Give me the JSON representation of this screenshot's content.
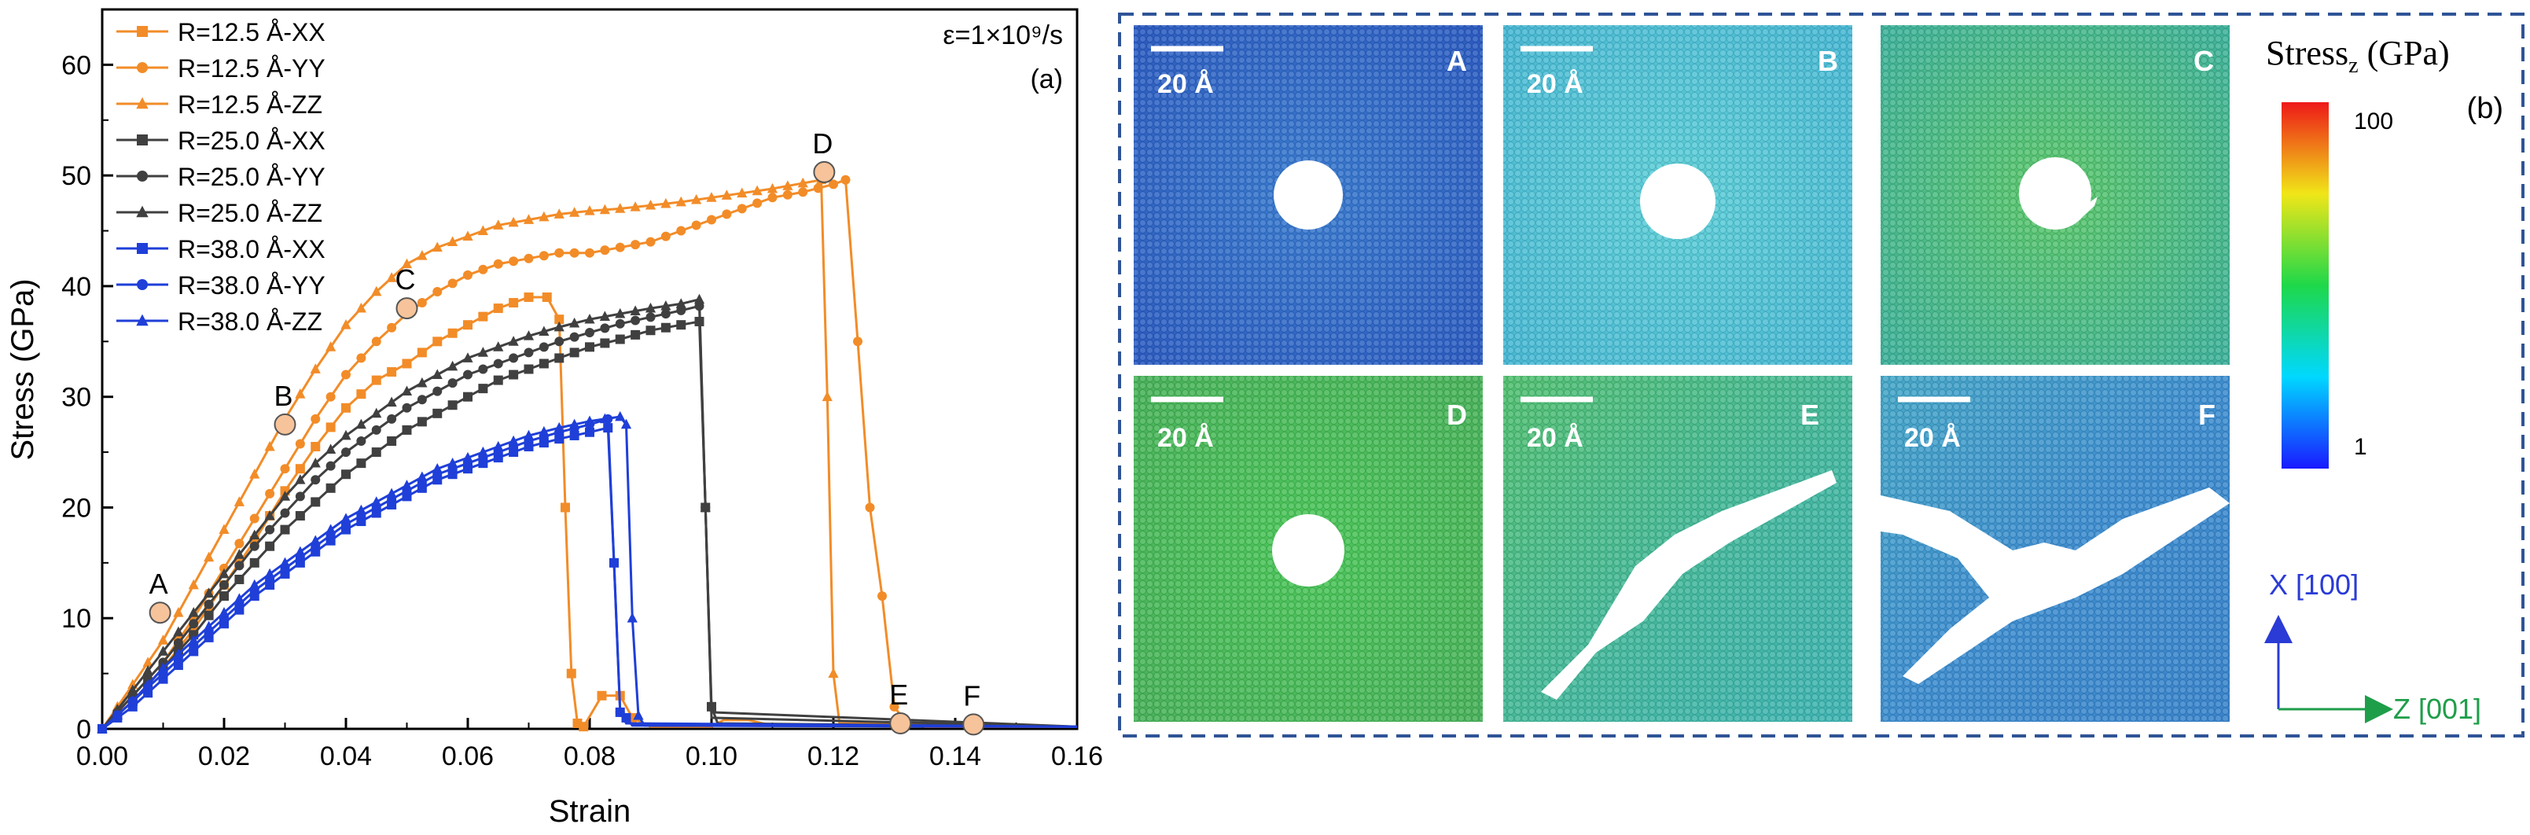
{
  "chart_data": {
    "type": "line",
    "panel_label": "(a)",
    "rate_label": "ε=1×10⁹/s",
    "xlabel": "Strain",
    "ylabel": "Stress (GPa)",
    "xlim": [
      0.0,
      0.16
    ],
    "ylim": [
      0,
      65
    ],
    "x_ticks": [
      "0.00",
      "0.02",
      "0.04",
      "0.06",
      "0.08",
      "0.10",
      "0.12",
      "0.14",
      "0.16"
    ],
    "y_ticks": [
      "0",
      "10",
      "20",
      "30",
      "40",
      "50",
      "60"
    ],
    "legend_position": "top-left",
    "series": [
      {
        "name": "R=12.5 Å-XX",
        "color": "#f28c28",
        "marker": "square",
        "points": [
          [
            0,
            0
          ],
          [
            0.005,
            2.5
          ],
          [
            0.01,
            5.5
          ],
          [
            0.015,
            9
          ],
          [
            0.02,
            13
          ],
          [
            0.025,
            17
          ],
          [
            0.03,
            21.5
          ],
          [
            0.035,
            25.5
          ],
          [
            0.04,
            29
          ],
          [
            0.045,
            31.5
          ],
          [
            0.05,
            33
          ],
          [
            0.055,
            35
          ],
          [
            0.06,
            36.5
          ],
          [
            0.065,
            38
          ],
          [
            0.07,
            39
          ],
          [
            0.073,
            39
          ],
          [
            0.075,
            37
          ],
          [
            0.076,
            20
          ],
          [
            0.077,
            5
          ],
          [
            0.078,
            0.5
          ],
          [
            0.079,
            0.2
          ],
          [
            0.082,
            3
          ],
          [
            0.085,
            3
          ],
          [
            0.087,
            1
          ],
          [
            0.09,
            0.2
          ],
          [
            0.1,
            0.2
          ],
          [
            0.102,
            0.8
          ],
          [
            0.106,
            0.8
          ],
          [
            0.11,
            0.3
          ],
          [
            0.16,
            0.2
          ]
        ]
      },
      {
        "name": "R=12.5 Å-YY",
        "color": "#f28c28",
        "marker": "circle",
        "points": [
          [
            0,
            0
          ],
          [
            0.005,
            3
          ],
          [
            0.01,
            6
          ],
          [
            0.015,
            10
          ],
          [
            0.02,
            14.5
          ],
          [
            0.025,
            19
          ],
          [
            0.03,
            23.5
          ],
          [
            0.035,
            28
          ],
          [
            0.04,
            32
          ],
          [
            0.045,
            35
          ],
          [
            0.05,
            37.5
          ],
          [
            0.055,
            39.5
          ],
          [
            0.06,
            41
          ],
          [
            0.065,
            42
          ],
          [
            0.07,
            42.5
          ],
          [
            0.075,
            43
          ],
          [
            0.08,
            43
          ],
          [
            0.085,
            43.5
          ],
          [
            0.09,
            44
          ],
          [
            0.095,
            45
          ],
          [
            0.1,
            46
          ],
          [
            0.105,
            47
          ],
          [
            0.11,
            48
          ],
          [
            0.115,
            48.5
          ],
          [
            0.12,
            49.2
          ],
          [
            0.122,
            49.6
          ],
          [
            0.124,
            35
          ],
          [
            0.126,
            20
          ],
          [
            0.128,
            12
          ],
          [
            0.13,
            2
          ],
          [
            0.132,
            0.5
          ],
          [
            0.135,
            0.2
          ],
          [
            0.16,
            0.2
          ]
        ]
      },
      {
        "name": "R=12.5 Å-ZZ",
        "color": "#f28c28",
        "marker": "triangle",
        "points": [
          [
            0,
            0
          ],
          [
            0.005,
            4
          ],
          [
            0.01,
            8
          ],
          [
            0.015,
            13
          ],
          [
            0.02,
            18
          ],
          [
            0.025,
            23
          ],
          [
            0.03,
            28
          ],
          [
            0.035,
            32.5
          ],
          [
            0.04,
            36.5
          ],
          [
            0.045,
            39.5
          ],
          [
            0.05,
            42
          ],
          [
            0.055,
            43.5
          ],
          [
            0.06,
            44.5
          ],
          [
            0.065,
            45.5
          ],
          [
            0.07,
            46
          ],
          [
            0.075,
            46.5
          ],
          [
            0.08,
            46.8
          ],
          [
            0.085,
            47
          ],
          [
            0.09,
            47.3
          ],
          [
            0.095,
            47.6
          ],
          [
            0.1,
            48
          ],
          [
            0.105,
            48.4
          ],
          [
            0.11,
            48.8
          ],
          [
            0.115,
            49.3
          ],
          [
            0.118,
            49.6
          ],
          [
            0.119,
            30
          ],
          [
            0.12,
            5
          ],
          [
            0.121,
            0.5
          ],
          [
            0.16,
            0.2
          ]
        ]
      },
      {
        "name": "R=25.0 Å-XX",
        "color": "#404040",
        "marker": "square",
        "points": [
          [
            0,
            0
          ],
          [
            0.005,
            2.5
          ],
          [
            0.01,
            5.5
          ],
          [
            0.015,
            8.5
          ],
          [
            0.02,
            12
          ],
          [
            0.025,
            15
          ],
          [
            0.03,
            18
          ],
          [
            0.035,
            20.5
          ],
          [
            0.04,
            23
          ],
          [
            0.045,
            25
          ],
          [
            0.05,
            27
          ],
          [
            0.055,
            28.5
          ],
          [
            0.06,
            30
          ],
          [
            0.065,
            31.5
          ],
          [
            0.07,
            32.5
          ],
          [
            0.075,
            33.5
          ],
          [
            0.08,
            34.5
          ],
          [
            0.085,
            35.2
          ],
          [
            0.09,
            36
          ],
          [
            0.095,
            36.5
          ],
          [
            0.098,
            36.8
          ],
          [
            0.099,
            20
          ],
          [
            0.1,
            2
          ],
          [
            0.101,
            0.5
          ],
          [
            0.16,
            0.2
          ]
        ]
      },
      {
        "name": "R=25.0 Å-YY",
        "color": "#404040",
        "marker": "circle",
        "points": [
          [
            0,
            0
          ],
          [
            0.005,
            3
          ],
          [
            0.01,
            6
          ],
          [
            0.015,
            9.5
          ],
          [
            0.02,
            13
          ],
          [
            0.025,
            16.5
          ],
          [
            0.03,
            19.5
          ],
          [
            0.035,
            22.5
          ],
          [
            0.04,
            25
          ],
          [
            0.045,
            27
          ],
          [
            0.05,
            29
          ],
          [
            0.055,
            30.5
          ],
          [
            0.06,
            32
          ],
          [
            0.065,
            33
          ],
          [
            0.07,
            34
          ],
          [
            0.075,
            35
          ],
          [
            0.08,
            35.8
          ],
          [
            0.085,
            36.6
          ],
          [
            0.09,
            37.2
          ],
          [
            0.095,
            37.8
          ],
          [
            0.098,
            38.2
          ],
          [
            0.099,
            20
          ],
          [
            0.1,
            1.5
          ],
          [
            0.16,
            0.2
          ]
        ]
      },
      {
        "name": "R=25.0 Å-ZZ",
        "color": "#404040",
        "marker": "triangle",
        "points": [
          [
            0,
            0
          ],
          [
            0.005,
            3.5
          ],
          [
            0.01,
            7
          ],
          [
            0.015,
            10.5
          ],
          [
            0.02,
            14
          ],
          [
            0.025,
            17.5
          ],
          [
            0.03,
            21
          ],
          [
            0.035,
            24
          ],
          [
            0.04,
            26.5
          ],
          [
            0.045,
            28.5
          ],
          [
            0.05,
            30.5
          ],
          [
            0.055,
            32
          ],
          [
            0.06,
            33.5
          ],
          [
            0.065,
            34.5
          ],
          [
            0.07,
            35.5
          ],
          [
            0.075,
            36.3
          ],
          [
            0.08,
            37
          ],
          [
            0.085,
            37.5
          ],
          [
            0.09,
            38
          ],
          [
            0.095,
            38.4
          ],
          [
            0.098,
            38.8
          ],
          [
            0.099,
            20
          ],
          [
            0.1,
            1
          ],
          [
            0.16,
            0.2
          ]
        ]
      },
      {
        "name": "R=38.0 Å-XX",
        "color": "#1f3fd8",
        "marker": "square",
        "points": [
          [
            0,
            0
          ],
          [
            0.005,
            2
          ],
          [
            0.01,
            4.5
          ],
          [
            0.015,
            7
          ],
          [
            0.02,
            9.5
          ],
          [
            0.025,
            12
          ],
          [
            0.03,
            14
          ],
          [
            0.035,
            16
          ],
          [
            0.04,
            18
          ],
          [
            0.045,
            19.5
          ],
          [
            0.05,
            21
          ],
          [
            0.055,
            22.5
          ],
          [
            0.06,
            23.5
          ],
          [
            0.065,
            24.5
          ],
          [
            0.07,
            25.5
          ],
          [
            0.075,
            26.2
          ],
          [
            0.08,
            26.8
          ],
          [
            0.083,
            27.2
          ],
          [
            0.084,
            15
          ],
          [
            0.085,
            1.5
          ],
          [
            0.086,
            1
          ],
          [
            0.087,
            0.3
          ],
          [
            0.16,
            0.2
          ]
        ]
      },
      {
        "name": "R=38.0 Å-YY",
        "color": "#1f3fd8",
        "marker": "circle",
        "points": [
          [
            0,
            0
          ],
          [
            0.005,
            2.5
          ],
          [
            0.01,
            5
          ],
          [
            0.015,
            7.5
          ],
          [
            0.02,
            10
          ],
          [
            0.025,
            12.5
          ],
          [
            0.03,
            14.5
          ],
          [
            0.035,
            16.5
          ],
          [
            0.04,
            18.5
          ],
          [
            0.045,
            20
          ],
          [
            0.05,
            21.5
          ],
          [
            0.055,
            23
          ],
          [
            0.06,
            24
          ],
          [
            0.065,
            25
          ],
          [
            0.07,
            26
          ],
          [
            0.075,
            26.8
          ],
          [
            0.08,
            27.5
          ],
          [
            0.083,
            28
          ],
          [
            0.084,
            15
          ],
          [
            0.085,
            1.5
          ],
          [
            0.086,
            0.5
          ],
          [
            0.16,
            0.2
          ]
        ]
      },
      {
        "name": "R=38.0 Å-ZZ",
        "color": "#1f3fd8",
        "marker": "triangle",
        "points": [
          [
            0,
            0
          ],
          [
            0.005,
            2.5
          ],
          [
            0.01,
            5.5
          ],
          [
            0.015,
            8
          ],
          [
            0.02,
            10.5
          ],
          [
            0.025,
            13
          ],
          [
            0.03,
            15
          ],
          [
            0.035,
            17
          ],
          [
            0.04,
            19
          ],
          [
            0.045,
            20.5
          ],
          [
            0.05,
            22
          ],
          [
            0.055,
            23.5
          ],
          [
            0.06,
            24.5
          ],
          [
            0.065,
            25.5
          ],
          [
            0.07,
            26.5
          ],
          [
            0.075,
            27.2
          ],
          [
            0.08,
            27.8
          ],
          [
            0.085,
            28.2
          ],
          [
            0.086,
            27.5
          ],
          [
            0.087,
            10
          ],
          [
            0.088,
            1.2
          ],
          [
            0.089,
            0.3
          ],
          [
            0.16,
            0.2
          ]
        ]
      }
    ],
    "point_annotations": [
      {
        "label": "A",
        "x": 0.0095,
        "y": 10.5
      },
      {
        "label": "B",
        "x": 0.03,
        "y": 27.5
      },
      {
        "label": "C",
        "x": 0.05,
        "y": 38.0
      },
      {
        "label": "D",
        "x": 0.1185,
        "y": 50.3
      },
      {
        "label": "E",
        "x": 0.131,
        "y": 0.5
      },
      {
        "label": "F",
        "x": 0.143,
        "y": 0.4
      }
    ]
  },
  "stress_maps": {
    "panel_label": "(b)",
    "colorbar_title": "Stress",
    "colorbar_subscript": "z",
    "colorbar_unit": " (GPa)",
    "colorbar_max": "100",
    "colorbar_min": "1",
    "scale_bar": "20 Å",
    "axis_x": "X [100]",
    "axis_z": "Z [001]",
    "axis_x_color": "#2a3bd6",
    "axis_z_color": "#1f9e4a",
    "snapshots": [
      "A",
      "B",
      "C",
      "D",
      "E",
      "F"
    ]
  }
}
